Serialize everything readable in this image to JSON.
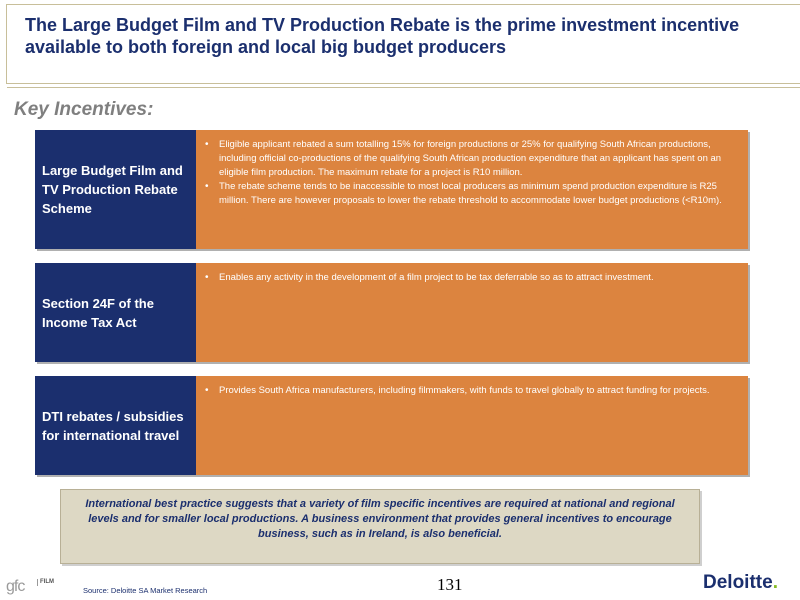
{
  "header": {
    "title": "The Large Budget Film and TV Production Rebate is the prime investment incentive available to both foreign and local big budget producers"
  },
  "section_heading": "Key Incentives:",
  "incentives": [
    {
      "label": "Large Budget Film and TV Production Rebate Scheme",
      "bullets": [
        "Eligible applicant rebated a sum totalling 15% for foreign productions or 25% for qualifying South African productions, including official co-productions of the qualifying South African production expenditure that an applicant has spent on an eligible film production. The maximum rebate for a project is R10 million.",
        "The rebate scheme tends to be inaccessible to most local producers as minimum spend production expenditure is R25 million. There are however proposals to lower the rebate threshold to accommodate lower budget productions (<R10m)."
      ]
    },
    {
      "label": "Section 24F of the Income Tax Act",
      "bullets": [
        "Enables any activity in the development of a film project to be tax deferrable so as to attract investment."
      ]
    },
    {
      "label": "DTI rebates / subsidies for international travel",
      "bullets": [
        "Provides South Africa manufacturers, including filmmakers, with funds to travel globally to attract funding for projects."
      ]
    }
  ],
  "note": "International best practice suggests that a variety of film specific incentives are required at national and regional levels and for smaller local productions. A business environment that provides general incentives to encourage business, such as in Ireland, is also beneficial.",
  "footer": {
    "logo_left": "gfc",
    "logo_left_sub": "FILM",
    "source": "Source: Deloitte SA Market Research",
    "page_number": "131",
    "brand": "Deloitte",
    "brand_dot": "."
  },
  "colors": {
    "navy": "#1b2f6e",
    "orange": "#dc843f",
    "beige": "#ddd8c4",
    "deloitte_green": "#86bc25"
  }
}
